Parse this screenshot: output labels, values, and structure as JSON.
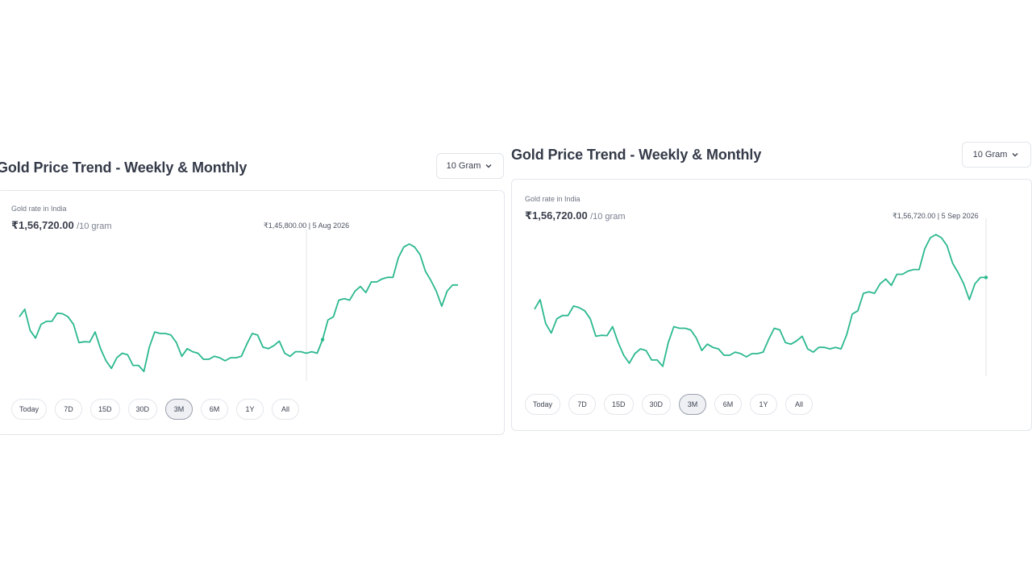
{
  "panels": [
    {
      "title": "Gold Price Trend - Weekly & Monthly",
      "unit_select": "10 Gram",
      "rate_label": "Gold rate in India",
      "rate_value": "₹1,56,720.00",
      "rate_unit": "/10 gram",
      "tooltip": "₹1,45,800.00 | 5 Aug 2026",
      "ranges": [
        "Today",
        "7D",
        "15D",
        "30D",
        "3M",
        "6M",
        "1Y",
        "All"
      ],
      "active_range": "3M"
    },
    {
      "title": "Gold Price Trend - Weekly & Monthly",
      "unit_select": "10 Gram",
      "rate_label": "Gold rate in India",
      "rate_value": "₹1,56,720.00",
      "rate_unit": "/10 gram",
      "tooltip": "₹1,56,720.00 | 5 Sep 2026",
      "ranges": [
        "Today",
        "7D",
        "15D",
        "30D",
        "3M",
        "6M",
        "1Y",
        "All"
      ],
      "active_range": "3M"
    }
  ],
  "chart_data": [
    {
      "type": "line",
      "series": [
        {
          "color": "#2bb88f",
          "values": [
            1.0,
            1.25,
            0.55,
            0.3,
            0.75,
            0.85,
            0.85,
            1.12,
            1.1,
            1.0,
            0.75,
            0.15,
            0.18,
            0.17,
            0.5,
            -0.05,
            -0.45,
            -0.7,
            -0.35,
            -0.2,
            -0.25,
            -0.6,
            -0.6,
            -0.8,
            0.0,
            0.5,
            0.45,
            0.45,
            0.4,
            0.15,
            -0.3,
            -0.05,
            -0.15,
            -0.2,
            -0.4,
            -0.4,
            -0.3,
            -0.35,
            -0.45,
            -0.35,
            -0.35,
            -0.3,
            0.1,
            0.45,
            0.4,
            0.0,
            -0.05,
            0.05,
            0.2,
            -0.2,
            -0.3,
            -0.15,
            -0.15,
            -0.2,
            -0.15,
            -0.2,
            0.25,
            0.9,
            1.0,
            1.55,
            1.6,
            1.55,
            1.85,
            2.0,
            1.8,
            2.15,
            2.15,
            2.25,
            2.3,
            2.3,
            2.95,
            3.3,
            3.4,
            3.3,
            3.05,
            2.5,
            2.2,
            1.85,
            1.35,
            1.85,
            2.05,
            2.05
          ]
        }
      ]
    },
    {
      "type": "line",
      "series": [
        {
          "color": "#2bb88f",
          "values": [
            1.2,
            1.5,
            0.75,
            0.45,
            0.9,
            1.0,
            1.0,
            1.3,
            1.25,
            1.15,
            0.9,
            0.35,
            0.38,
            0.37,
            0.65,
            0.15,
            -0.25,
            -0.5,
            -0.2,
            -0.05,
            -0.1,
            -0.4,
            -0.4,
            -0.6,
            0.15,
            0.65,
            0.6,
            0.6,
            0.55,
            0.3,
            -0.1,
            0.1,
            0.0,
            -0.05,
            -0.25,
            -0.25,
            -0.15,
            -0.2,
            -0.3,
            -0.2,
            -0.2,
            -0.15,
            0.25,
            0.6,
            0.55,
            0.15,
            0.1,
            0.2,
            0.35,
            -0.05,
            -0.15,
            0.0,
            0.0,
            -0.05,
            0.0,
            -0.05,
            0.4,
            1.05,
            1.15,
            1.7,
            1.75,
            1.7,
            2.0,
            2.15,
            1.95,
            2.3,
            2.3,
            2.4,
            2.45,
            2.45,
            3.1,
            3.45,
            3.55,
            3.45,
            3.2,
            2.65,
            2.35,
            2.0,
            1.5,
            2.0,
            2.2,
            2.2
          ]
        }
      ]
    }
  ]
}
